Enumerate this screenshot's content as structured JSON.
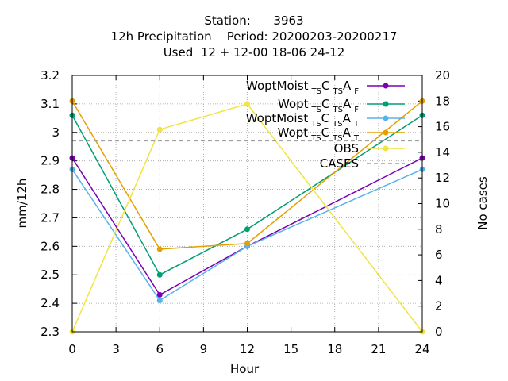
{
  "chart_data": {
    "type": "line",
    "title_lines": [
      "Station:      3963",
      "12h Precipitation    Period: 20200203-20200217",
      "Used  12 + 12-00 18-06 24-12"
    ],
    "xlabel": "Hour",
    "ylabel": "mm/12h",
    "y2label": "No cases",
    "xlim": [
      0,
      24
    ],
    "ylim": [
      2.3,
      3.2
    ],
    "y2lim": [
      0,
      20
    ],
    "x_ticks": [
      "0",
      "3",
      "6",
      "9",
      "12",
      "15",
      "18",
      "21",
      "24"
    ],
    "y_ticks": [
      "2.3",
      "2.4",
      "2.5",
      "2.6",
      "2.7",
      "2.8",
      "2.9",
      "3",
      "3.1",
      "3.2"
    ],
    "y2_ticks": [
      "0",
      "2",
      "4",
      "6",
      "8",
      "10",
      "12",
      "14",
      "16",
      "18",
      "20"
    ],
    "grid": true,
    "legend_position": "top-right",
    "series": [
      {
        "legend": [
          "WoptMoist",
          "TS",
          "C",
          "TS",
          "A",
          "F"
        ],
        "color": "#7b00b4",
        "axis": "y",
        "x": [
          0,
          6,
          12,
          24
        ],
        "values": [
          2.91,
          2.43,
          2.6,
          2.91
        ]
      },
      {
        "legend": [
          "Wopt",
          "TS",
          "C",
          "TS",
          "A",
          "F"
        ],
        "color": "#009e73",
        "axis": "y",
        "x": [
          0,
          6,
          12,
          24
        ],
        "values": [
          3.06,
          2.5,
          2.66,
          3.06
        ]
      },
      {
        "legend": [
          "WoptMoist",
          "TS",
          "C",
          "TS",
          "A",
          "T"
        ],
        "color": "#56b4e9",
        "axis": "y",
        "x": [
          0,
          6,
          12,
          24
        ],
        "values": [
          2.87,
          2.41,
          2.6,
          2.87
        ]
      },
      {
        "legend": [
          "Wopt",
          "TS",
          "C",
          "TS",
          "A",
          "T"
        ],
        "color": "#e69f00",
        "axis": "y",
        "x": [
          0,
          6,
          12,
          24
        ],
        "values": [
          3.11,
          2.59,
          2.61,
          3.11
        ]
      },
      {
        "legend": [
          "OBS"
        ],
        "color": "#f0e442",
        "axis": "y",
        "x": [
          0,
          6,
          12,
          24
        ],
        "values": [
          2.3,
          3.01,
          3.1,
          2.3
        ]
      },
      {
        "legend": [
          "CASES"
        ],
        "color": "#a0a0a0",
        "axis": "y2",
        "dashed": true,
        "x": [
          0,
          24
        ],
        "values": [
          14.9,
          14.9
        ]
      }
    ]
  }
}
